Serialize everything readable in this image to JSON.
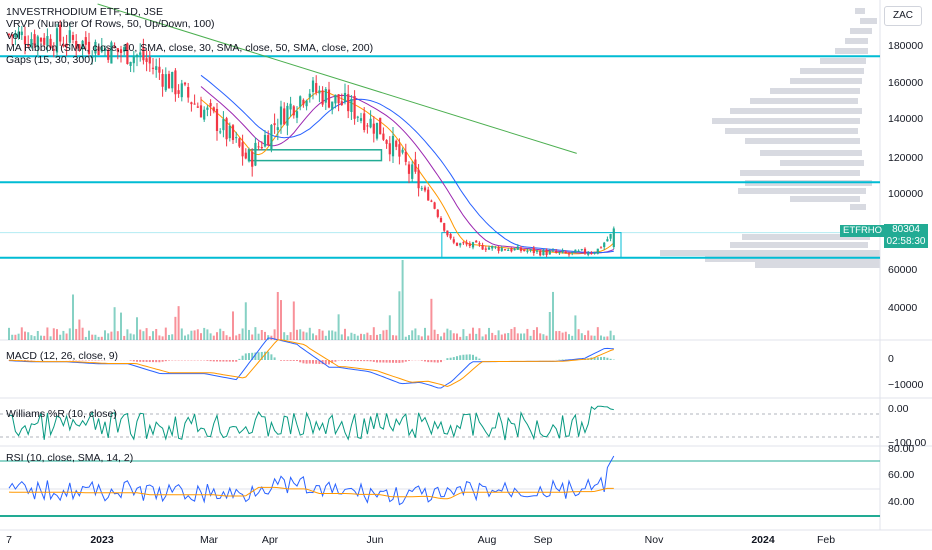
{
  "header": {
    "title": "1NVESTRHODIUM ETF, 1D, JSE",
    "indicators": [
      "VRVP (Number Of Rows, 50, Up/Down, 100)",
      "Vol",
      "MA Ribbon (SMA, close, 10, SMA, close, 30, SMA, close, 50, SMA, close, 200)",
      "Gaps (15, 30, 300)"
    ]
  },
  "currency": "ZAC",
  "symbol_tag": "ETFRHO",
  "price_tag": {
    "price": "80304",
    "countdown": "02:58:30"
  },
  "price_axis": {
    "ticks": [
      "180000",
      "160000",
      "140000",
      "120000",
      "100000",
      "60000",
      "40000"
    ]
  },
  "x_axis": {
    "ticks": [
      {
        "label": "7",
        "bold": false
      },
      {
        "label": "2023",
        "bold": true
      },
      {
        "label": "Mar",
        "bold": false
      },
      {
        "label": "Apr",
        "bold": false
      },
      {
        "label": "Jun",
        "bold": false
      },
      {
        "label": "Aug",
        "bold": false
      },
      {
        "label": "Sep",
        "bold": false
      },
      {
        "label": "Nov",
        "bold": false
      },
      {
        "label": "2024",
        "bold": true
      },
      {
        "label": "Feb",
        "bold": false
      }
    ]
  },
  "panes": {
    "macd": {
      "label": "MACD (12, 26, close, 9)",
      "ticks": [
        "0",
        "−10000"
      ]
    },
    "williams": {
      "label": "Williams %R (10, close)",
      "ticks": [
        "0.00",
        "−100.00"
      ]
    },
    "rsi": {
      "label": "RSI (10, close, SMA, 14, 2)",
      "ticks": [
        "80.00",
        "60.00",
        "40.00"
      ]
    }
  },
  "colors": {
    "up": "#22ab94",
    "down": "#f23645",
    "hline": "#00bcd4",
    "ma10": "#ff9800",
    "ma30": "#9c27b0",
    "ma50": "#2962ff",
    "ma200": "#4caf50",
    "rsi": "#2962ff",
    "rsi_ma": "#ff9800",
    "williams": "#089981",
    "vrvp": "#d1d4dc"
  },
  "chart_data": {
    "type": "candlestick",
    "title": "1NVESTRHODIUM ETF, 1D, JSE",
    "price_range": [
      60000,
      190000
    ],
    "horizontal_levels": [
      176000,
      106000,
      64000
    ],
    "consolidation_box": [
      64000,
      78000
    ],
    "last_price": 80304,
    "ma200_segment": [
      {
        "date": "2023-01",
        "value": 205000
      },
      {
        "date": "2023-09",
        "value": 122000
      }
    ],
    "close_path": [
      {
        "date": "2022-12-07",
        "value": 188000
      },
      {
        "date": "2023-01-10",
        "value": 184000
      },
      {
        "date": "2023-02-10",
        "value": 176000
      },
      {
        "date": "2023-03-01",
        "value": 158000
      },
      {
        "date": "2023-03-20",
        "value": 140000
      },
      {
        "date": "2023-04-05",
        "value": 118000
      },
      {
        "date": "2023-04-20",
        "value": 142000
      },
      {
        "date": "2023-05-05",
        "value": 158000
      },
      {
        "date": "2023-05-25",
        "value": 148000
      },
      {
        "date": "2023-06-10",
        "value": 135000
      },
      {
        "date": "2023-06-25",
        "value": 110000
      },
      {
        "date": "2023-07-05",
        "value": 95000
      },
      {
        "date": "2023-07-15",
        "value": 72000
      },
      {
        "date": "2023-08-01",
        "value": 70000
      },
      {
        "date": "2023-08-20",
        "value": 68000
      },
      {
        "date": "2023-09-10",
        "value": 66000
      },
      {
        "date": "2023-09-25",
        "value": 68000
      },
      {
        "date": "2023-10-05",
        "value": 80304
      }
    ],
    "volume_spike_date": "2023-06-20"
  }
}
